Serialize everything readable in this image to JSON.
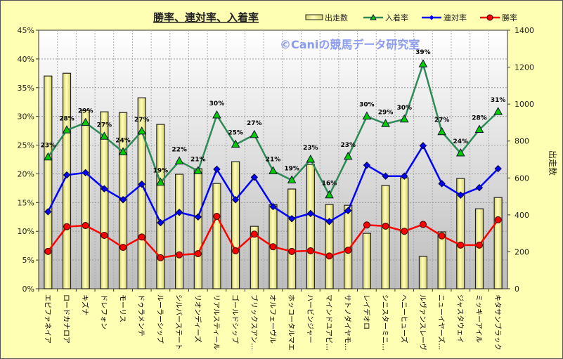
{
  "chart_data": {
    "type": "bar",
    "title": "勝率、連対率、入着率",
    "watermark": "©Caniの競馬データ研究室",
    "xlabel": "",
    "ylabel": "",
    "y2label": "出走数",
    "ylim": [
      0,
      45
    ],
    "y2lim": [
      0,
      1400
    ],
    "yticks": [
      "0%",
      "5%",
      "10%",
      "15%",
      "20%",
      "25%",
      "30%",
      "35%",
      "40%",
      "45%"
    ],
    "y2ticks": [
      "0",
      "200",
      "400",
      "600",
      "800",
      "1000",
      "1200",
      "1400"
    ],
    "grid": true,
    "legend_position": "top-right",
    "categories": [
      "エピファネイア",
      "ロードカナロア",
      "キズナ",
      "ドレフォン",
      "モーリス",
      "ドゥラメンテ",
      "ルーラーシップ",
      "シルバーステート",
      "リオンディーズ",
      "リアルスティール",
      "ゴールドシップ",
      "ブリックスアン…",
      "オルフェーヴル",
      "ホッコータルマエ",
      "ハービンジャー",
      "マインドユアビ…",
      "サトノダイヤモ…",
      "レイデオロ",
      "シニスターミニ…",
      "ヘニーヒューズ",
      "ルヴァンスレーヴ",
      "ニューイヤーズ…",
      "ジャスタウェイ",
      "ミッキーアイル",
      "キタサンブラック"
    ],
    "series": [
      {
        "name": "出走数",
        "type": "bar",
        "axis": "right",
        "color": "#F5F08C",
        "values": [
          1152,
          1167,
          966,
          958,
          954,
          1034,
          890,
          620,
          650,
          570,
          688,
          338,
          456,
          540,
          673,
          456,
          452,
          300,
          559,
          601,
          175,
          308,
          597,
          433,
          494
        ]
      },
      {
        "name": "入着率",
        "type": "line",
        "axis": "left",
        "color": "#2E8B57",
        "marker": "triangle",
        "marker_color": "#00CC00",
        "values": [
          22.9,
          27.6,
          28.9,
          26.5,
          23.8,
          27.4,
          18.5,
          22.2,
          20.5,
          30.2,
          25.1,
          26.8,
          20.5,
          18.9,
          22.5,
          16.3,
          23.0,
          30.0,
          28.7,
          29.5,
          39.1,
          27.3,
          23.6,
          27.7,
          30.8
        ],
        "labels": [
          "23%",
          "28%",
          "29%",
          "27%",
          "24%",
          "27%",
          "19%",
          "22%",
          "21%",
          "30%",
          "25%",
          "27%",
          "21%",
          "19%",
          "23%",
          "16%",
          "23%",
          "30%",
          "29%",
          "30%",
          "39%",
          "27%",
          "24%",
          "28%",
          "31%"
        ]
      },
      {
        "name": "連対率",
        "type": "line",
        "axis": "left",
        "color": "#0000FF",
        "marker": "diamond",
        "values": [
          13.4,
          19.8,
          20.2,
          17.4,
          15.5,
          18.2,
          11.5,
          13.3,
          12.5,
          20.8,
          15.5,
          19.4,
          14.3,
          12.2,
          13.1,
          11.7,
          13.6,
          21.5,
          19.6,
          19.6,
          24.9,
          18.3,
          16.3,
          17.6,
          20.9
        ]
      },
      {
        "name": "勝率",
        "type": "line",
        "axis": "left",
        "color": "#FF0000",
        "marker": "circle",
        "values": [
          6.5,
          10.8,
          11.0,
          9.3,
          7.2,
          9.0,
          5.4,
          5.9,
          6.1,
          12.6,
          6.6,
          9.5,
          7.3,
          6.5,
          6.6,
          5.7,
          6.7,
          11.1,
          10.9,
          10.0,
          11.2,
          9.2,
          7.6,
          7.6,
          12.0
        ]
      }
    ]
  }
}
